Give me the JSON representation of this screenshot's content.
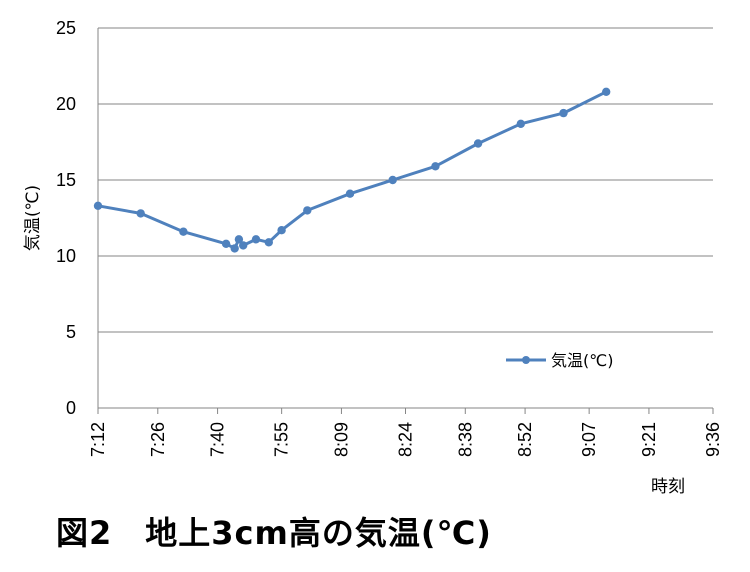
{
  "caption": "図2　地上3cm高の気温(℃)",
  "chart_data": {
    "type": "line",
    "ylabel": "気温(℃)",
    "xlabel": "時刻",
    "ylim": [
      0,
      25
    ],
    "yticks": [
      0,
      5,
      10,
      15,
      20,
      25
    ],
    "xticks": [
      "7:12",
      "7:26",
      "7:40",
      "7:55",
      "8:09",
      "8:24",
      "8:38",
      "8:52",
      "9:07",
      "9:21",
      "9:36"
    ],
    "grid": "horizontal",
    "legend_position": "inside-lower-right",
    "series": [
      {
        "name": "気温(℃)",
        "color": "#4f81bd",
        "x": [
          "7:12",
          "7:22",
          "7:32",
          "7:42",
          "7:44",
          "7:45",
          "7:46",
          "7:49",
          "7:52",
          "7:55",
          "8:01",
          "8:11",
          "8:21",
          "8:31",
          "8:41",
          "8:51",
          "9:01",
          "9:11"
        ],
        "y": [
          13.3,
          12.8,
          11.6,
          10.8,
          10.5,
          11.1,
          10.7,
          11.1,
          10.9,
          11.7,
          13.0,
          14.1,
          15.0,
          15.9,
          17.4,
          18.7,
          19.4,
          20.8
        ]
      }
    ]
  }
}
